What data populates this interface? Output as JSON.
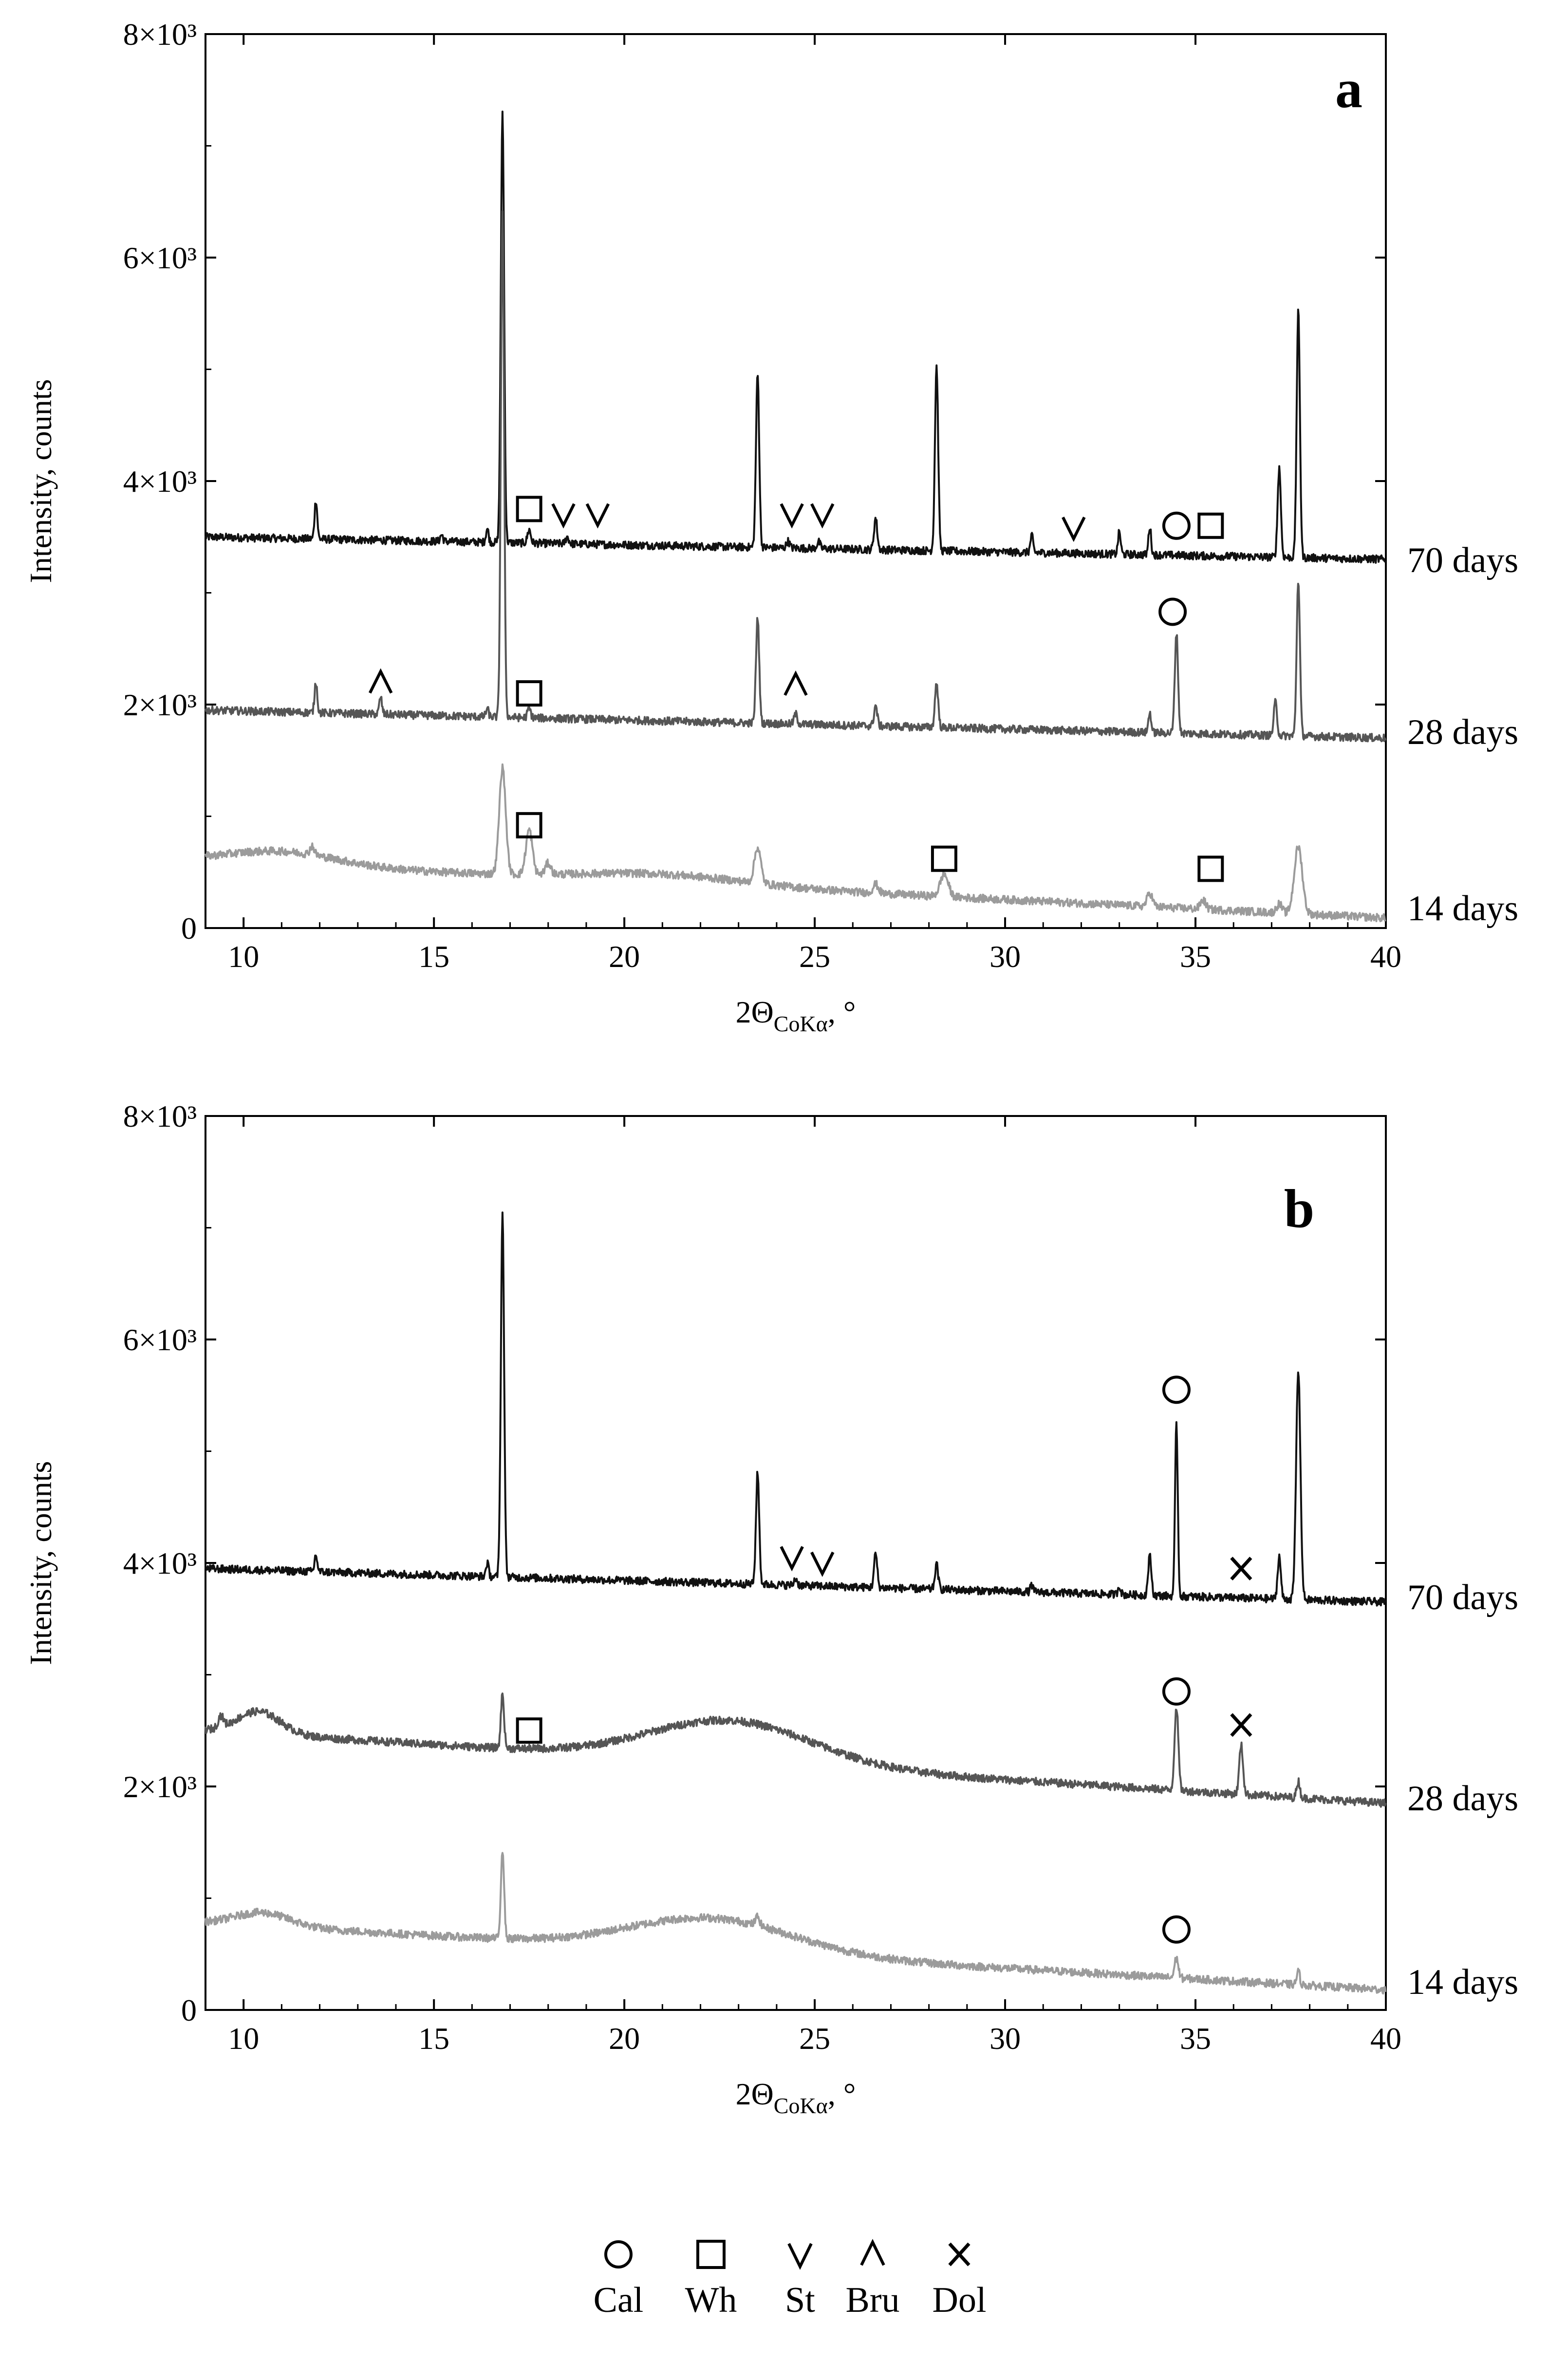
{
  "legend": [
    {
      "symbol": "circle",
      "label": "Cal"
    },
    {
      "symbol": "square",
      "label": "Wh"
    },
    {
      "symbol": "v",
      "label": "St"
    },
    {
      "symbol": "caret",
      "label": "Bru"
    },
    {
      "symbol": "x",
      "label": "Dol"
    }
  ],
  "colors": {
    "d70": "#111111",
    "d28": "#555555",
    "d14": "#9b9b9b"
  },
  "chart_data": [
    {
      "type": "line",
      "panel": "a",
      "xlabel": "2Θ",
      "xlabel_sub": "CoKα",
      "xlabel_suffix": ", °",
      "ylabel": "Intensity, counts",
      "xlim": [
        9,
        40
      ],
      "ylim": [
        0,
        8000
      ],
      "x_ticks": [
        10,
        15,
        20,
        25,
        30,
        35,
        40
      ],
      "y_ticks": [
        {
          "value": 0,
          "label": "0"
        },
        {
          "value": 2000,
          "label": "2×10³"
        },
        {
          "value": 4000,
          "label": "4×10³"
        },
        {
          "value": 6000,
          "label": "6×10³"
        },
        {
          "value": 8000,
          "label": "8×10³"
        }
      ],
      "series": [
        {
          "name": "70 days",
          "color": "#111111",
          "base_start": 3500,
          "base_end": 3300,
          "hump": [],
          "peaks": [
            [
              11.9,
              350,
              0.05
            ],
            [
              15.2,
              60,
              0.05
            ],
            [
              16.4,
              120,
              0.05
            ],
            [
              16.8,
              3850,
              0.06
            ],
            [
              17.5,
              120,
              0.06
            ],
            [
              18.5,
              60,
              0.06
            ],
            [
              23.5,
              1550,
              0.06
            ],
            [
              24.3,
              60,
              0.06
            ],
            [
              25.1,
              60,
              0.06
            ],
            [
              26.6,
              280,
              0.06
            ],
            [
              28.2,
              1650,
              0.06
            ],
            [
              30.7,
              150,
              0.05
            ],
            [
              33.0,
              200,
              0.05
            ],
            [
              33.8,
              250,
              0.05
            ],
            [
              37.2,
              800,
              0.06
            ],
            [
              37.7,
              2200,
              0.06
            ]
          ]
        },
        {
          "name": "28 days",
          "color": "#555555",
          "base_start": 1950,
          "base_end": 1700,
          "hump": [],
          "peaks": [
            [
              11.9,
              280,
              0.05
            ],
            [
              13.6,
              150,
              0.05
            ],
            [
              16.4,
              70,
              0.05
            ],
            [
              16.8,
              4500,
              0.06
            ],
            [
              17.5,
              80,
              0.06
            ],
            [
              23.5,
              950,
              0.06
            ],
            [
              24.5,
              90,
              0.06
            ],
            [
              26.6,
              180,
              0.06
            ],
            [
              28.2,
              400,
              0.06
            ],
            [
              33.8,
              180,
              0.05
            ],
            [
              34.5,
              900,
              0.06
            ],
            [
              37.1,
              300,
              0.06
            ],
            [
              37.7,
              1400,
              0.06
            ]
          ]
        },
        {
          "name": "14 days",
          "color": "#9b9b9b",
          "base_start": 600,
          "base_end": 90,
          "hump": [
            [
              11.0,
              120,
              2.0
            ],
            [
              21.0,
              80,
              3.0
            ]
          ],
          "peaks": [
            [
              11.8,
              80,
              0.08
            ],
            [
              16.8,
              950,
              0.12
            ],
            [
              17.5,
              400,
              0.12
            ],
            [
              18.0,
              100,
              0.1
            ],
            [
              23.5,
              320,
              0.12
            ],
            [
              26.6,
              80,
              0.1
            ],
            [
              28.4,
              200,
              0.15
            ],
            [
              33.8,
              120,
              0.1
            ],
            [
              35.2,
              80,
              0.1
            ],
            [
              37.2,
              80,
              0.1
            ],
            [
              37.7,
              600,
              0.15
            ]
          ]
        }
      ],
      "markers": [
        {
          "symbol": "square",
          "x": 17.5,
          "y": 3750
        },
        {
          "symbol": "v",
          "x": 18.4,
          "y": 3700
        },
        {
          "symbol": "v",
          "x": 19.3,
          "y": 3700
        },
        {
          "symbol": "v",
          "x": 24.4,
          "y": 3700
        },
        {
          "symbol": "v",
          "x": 25.2,
          "y": 3700
        },
        {
          "symbol": "v",
          "x": 31.8,
          "y": 3580
        },
        {
          "symbol": "circle",
          "x": 34.5,
          "y": 3600
        },
        {
          "symbol": "square",
          "x": 35.4,
          "y": 3600
        },
        {
          "symbol": "caret",
          "x": 13.6,
          "y": 2200
        },
        {
          "symbol": "square",
          "x": 17.5,
          "y": 2100
        },
        {
          "symbol": "caret",
          "x": 24.5,
          "y": 2180
        },
        {
          "symbol": "circle",
          "x": 34.4,
          "y": 2830
        },
        {
          "symbol": "square",
          "x": 17.5,
          "y": 920
        },
        {
          "symbol": "square",
          "x": 28.4,
          "y": 620
        },
        {
          "symbol": "square",
          "x": 35.4,
          "y": 530
        }
      ]
    },
    {
      "type": "line",
      "panel": "b",
      "xlabel": "2Θ",
      "xlabel_sub": "CoKα",
      "xlabel_suffix": ", °",
      "ylabel": "Intensity, counts",
      "xlim": [
        9,
        40
      ],
      "ylim": [
        0,
        8000
      ],
      "x_ticks": [
        10,
        15,
        20,
        25,
        30,
        35,
        40
      ],
      "y_ticks": [
        {
          "value": 0,
          "label": "0"
        },
        {
          "value": 2000,
          "label": "2×10³"
        },
        {
          "value": 4000,
          "label": "4×10³"
        },
        {
          "value": 6000,
          "label": "6×10³"
        },
        {
          "value": 8000,
          "label": "8×10³"
        }
      ],
      "series": [
        {
          "name": "70 days",
          "color": "#111111",
          "base_start": 3950,
          "base_end": 3650,
          "hump": [],
          "peaks": [
            [
              11.9,
              150,
              0.05
            ],
            [
              16.4,
              120,
              0.05
            ],
            [
              16.8,
              3250,
              0.06
            ],
            [
              23.5,
              1000,
              0.06
            ],
            [
              24.5,
              60,
              0.06
            ],
            [
              26.6,
              300,
              0.06
            ],
            [
              28.2,
              220,
              0.06
            ],
            [
              30.7,
              60,
              0.05
            ],
            [
              33.0,
              80,
              0.05
            ],
            [
              33.8,
              350,
              0.06
            ],
            [
              34.5,
              1550,
              0.05
            ],
            [
              37.2,
              380,
              0.06
            ],
            [
              37.7,
              2050,
              0.08
            ]
          ]
        },
        {
          "name": "28 days",
          "color": "#555555",
          "base_start": 2500,
          "base_end": 1850,
          "hump": [
            [
              10.4,
              200,
              0.8
            ],
            [
              22.8,
              380,
              3.0
            ]
          ],
          "peaks": [
            [
              9.4,
              100,
              0.1
            ],
            [
              16.8,
              480,
              0.06
            ],
            [
              34.5,
              750,
              0.07
            ],
            [
              36.2,
              440,
              0.07
            ],
            [
              37.7,
              150,
              0.06
            ]
          ]
        },
        {
          "name": "14 days",
          "color": "#9b9b9b",
          "base_start": 780,
          "base_end": 180,
          "hump": [
            [
              10.5,
              120,
              1.0
            ],
            [
              22.3,
              300,
              3.0
            ]
          ],
          "peaks": [
            [
              16.8,
              800,
              0.06
            ],
            [
              23.5,
              80,
              0.08
            ],
            [
              34.5,
              180,
              0.07
            ],
            [
              37.7,
              120,
              0.06
            ]
          ]
        }
      ],
      "markers": [
        {
          "symbol": "circle",
          "x": 34.5,
          "y": 5550
        },
        {
          "symbol": "v",
          "x": 24.4,
          "y": 4050
        },
        {
          "symbol": "v",
          "x": 25.2,
          "y": 4000
        },
        {
          "symbol": "x",
          "x": 36.2,
          "y": 3950
        },
        {
          "symbol": "circle",
          "x": 34.5,
          "y": 2850
        },
        {
          "symbol": "square",
          "x": 17.5,
          "y": 2500
        },
        {
          "symbol": "x",
          "x": 36.2,
          "y": 2550
        },
        {
          "symbol": "circle",
          "x": 34.5,
          "y": 720
        }
      ]
    }
  ]
}
